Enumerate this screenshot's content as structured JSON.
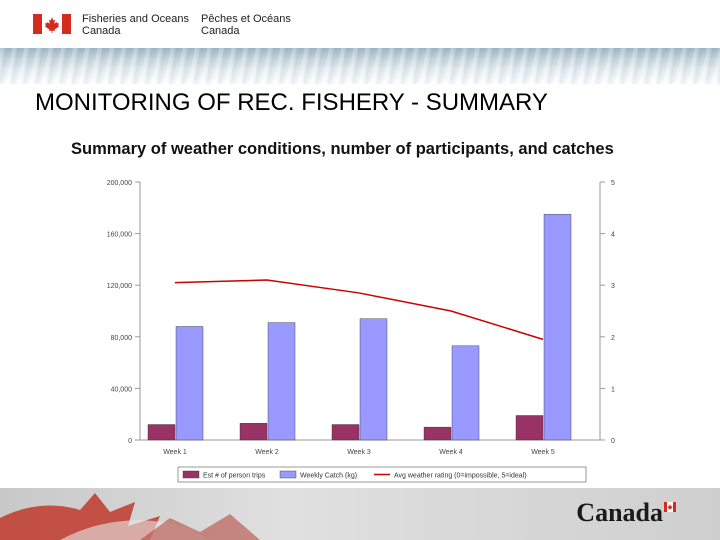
{
  "header": {
    "dept_en_line1": "Fisheries and Oceans",
    "dept_en_line2": "Canada",
    "dept_fr_line1": "Pêches et Océans",
    "dept_fr_line2": "Canada",
    "flag_icon": "canada-flag-icon"
  },
  "slide": {
    "title": "MONITORING OF REC. FISHERY  - SUMMARY"
  },
  "chart_data": {
    "type": "bar",
    "title": "Summary of weather conditions, number of participants, and catches",
    "categories": [
      "Week 1",
      "Week 2",
      "Week 3",
      "Week 4",
      "Week 5"
    ],
    "series": [
      {
        "name": "Est # of person trips",
        "type": "bar",
        "axis": "left",
        "color": "#993366",
        "values": [
          12000,
          13000,
          12000,
          10000,
          19000
        ]
      },
      {
        "name": "Weekly Catch (kg)",
        "type": "bar",
        "axis": "left",
        "color": "#9999ff",
        "values": [
          88000,
          91000,
          94000,
          73000,
          175000
        ]
      },
      {
        "name": "Avg weather rating (0=impossible, 5=ideal)",
        "type": "line",
        "axis": "right",
        "color": "#cc0000",
        "values": [
          3.05,
          3.1,
          2.85,
          2.5,
          1.95
        ]
      }
    ],
    "y_left": {
      "min": 0,
      "max": 200000,
      "ticks": [
        "0",
        "40,000",
        "80,000",
        "120,000",
        "160,000",
        "200,000"
      ]
    },
    "y_right": {
      "min": 0,
      "max": 5,
      "ticks": [
        "0",
        "1",
        "2",
        "3",
        "4",
        "5"
      ]
    },
    "grid": false,
    "legend_placement": "bottom"
  },
  "footer": {
    "wordmark": "Canada"
  }
}
